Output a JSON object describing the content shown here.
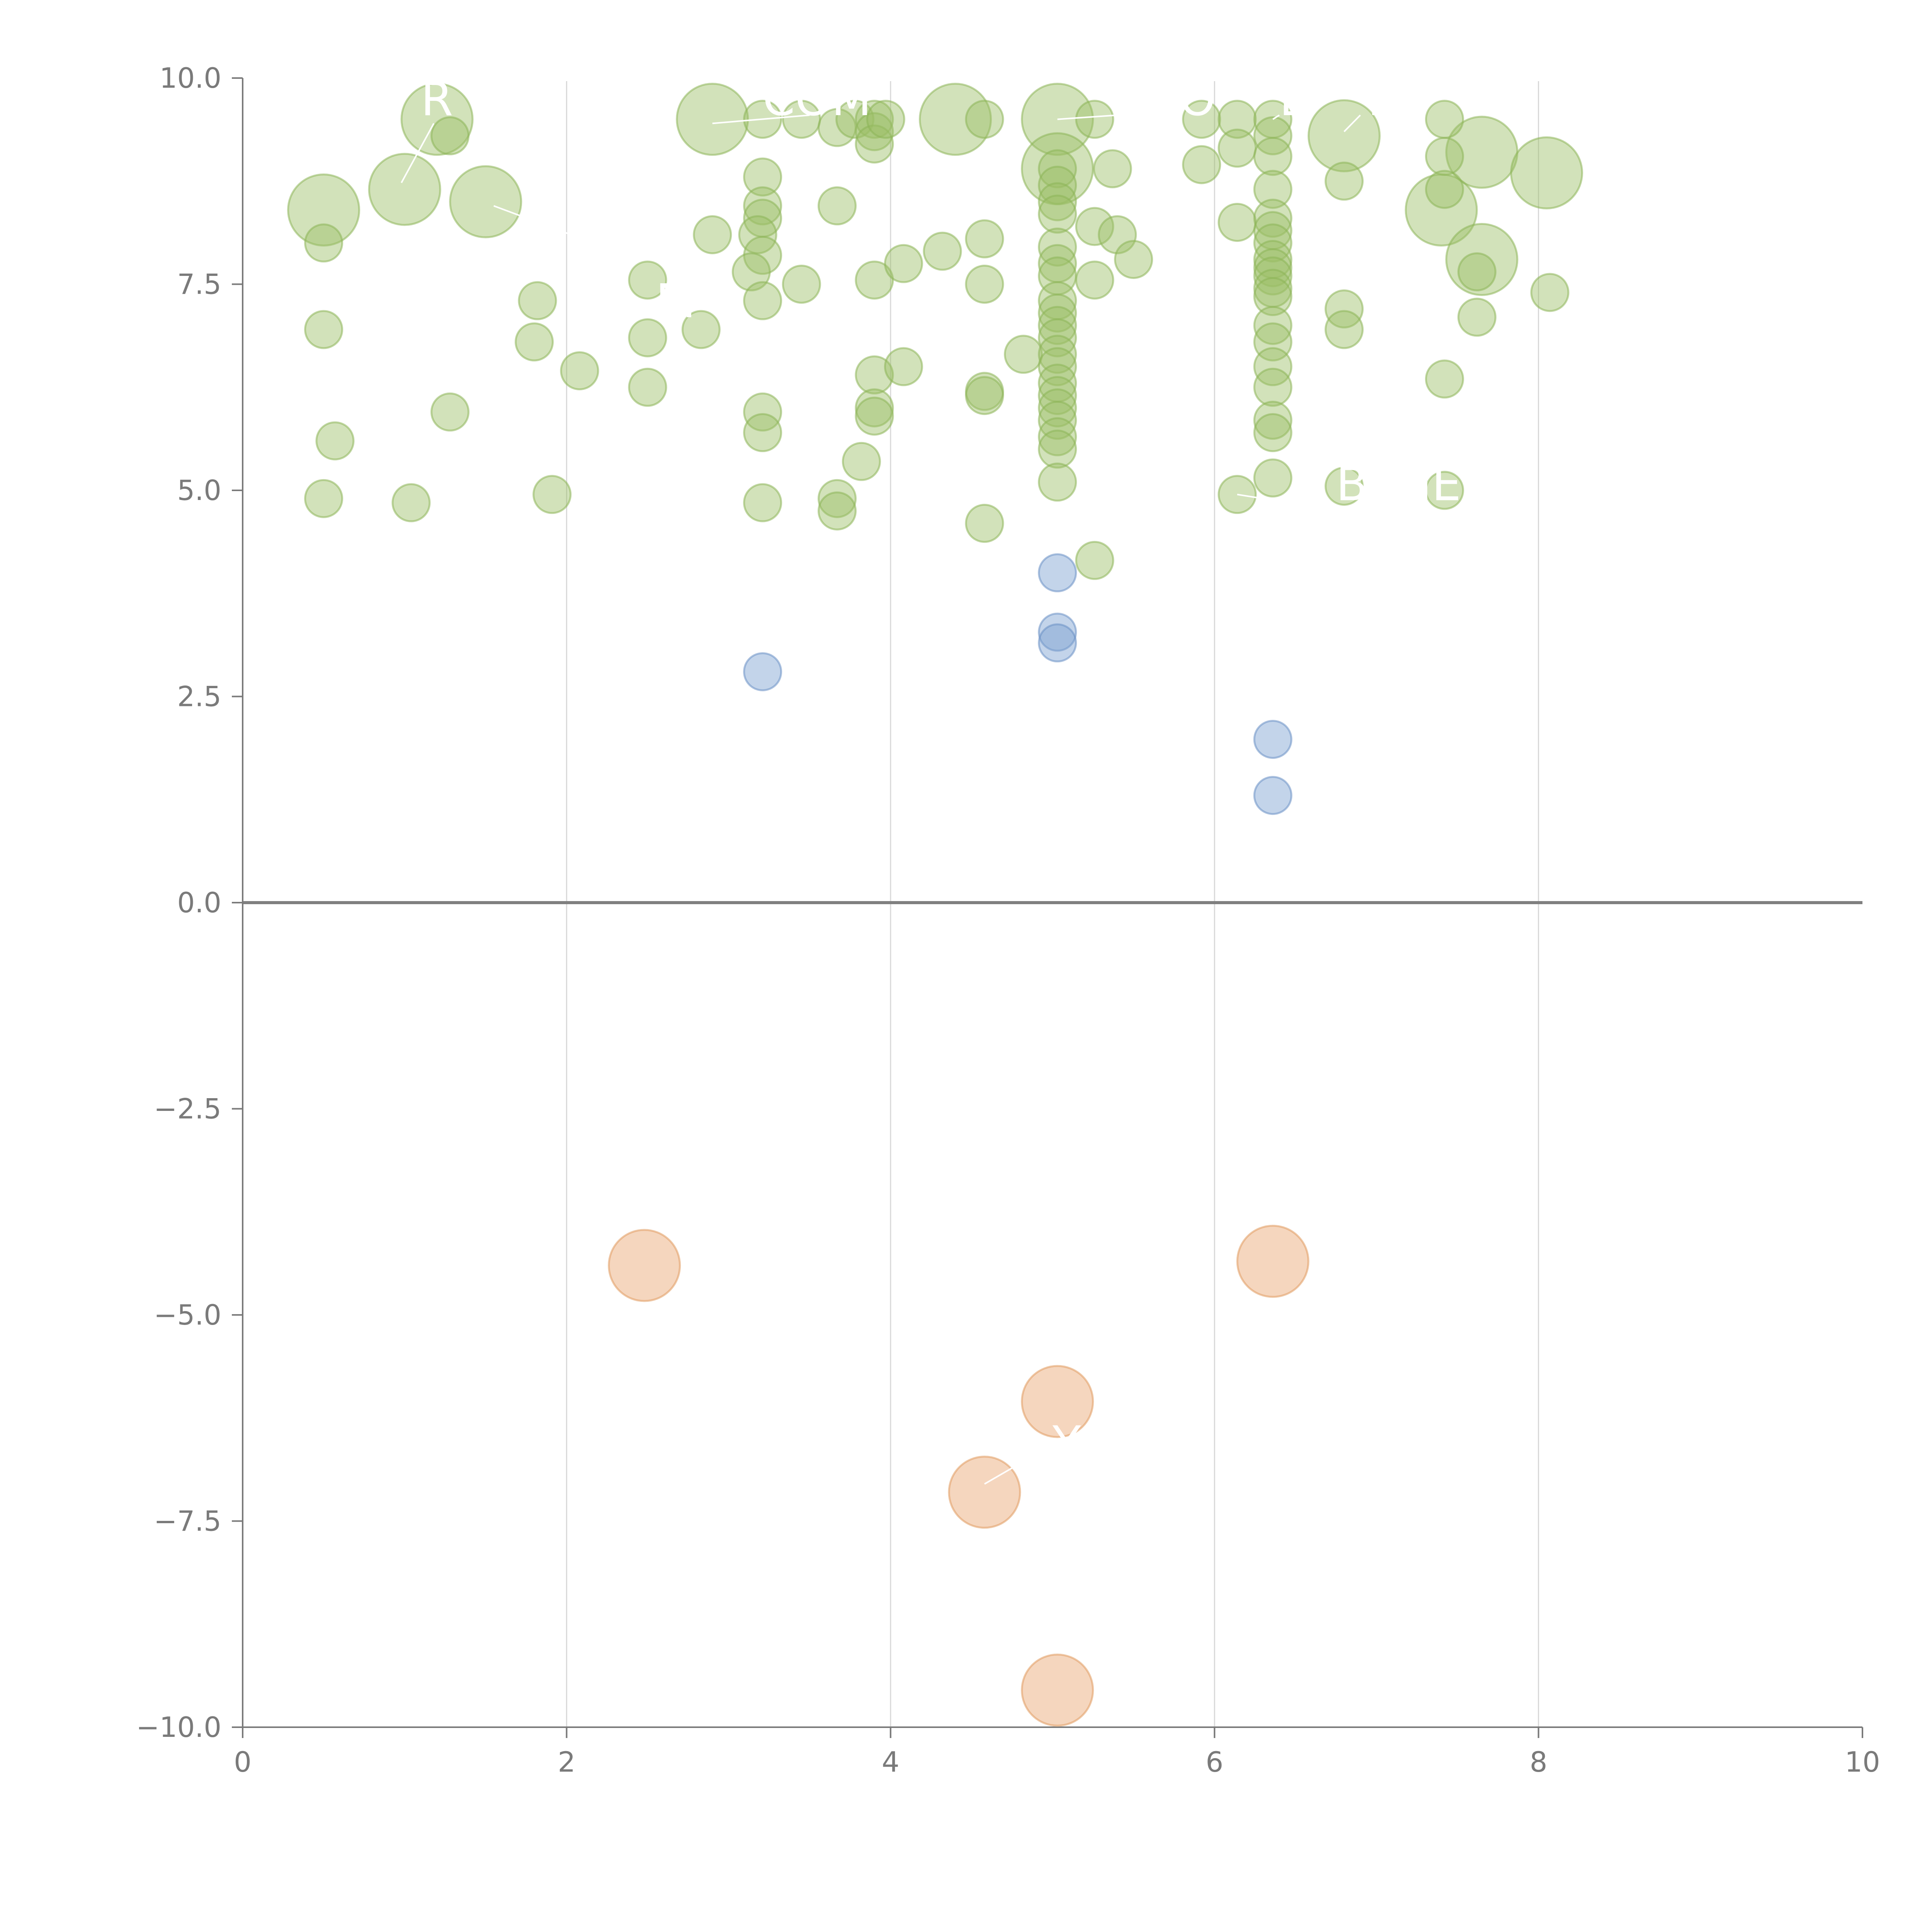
{
  "chart_data": {
    "type": "scatter",
    "title": "",
    "xlabel": "",
    "ylabel": "",
    "xlim": [
      0,
      10
    ],
    "ylim": [
      -10,
      10
    ],
    "x_ticks": [
      "0",
      "2",
      "4",
      "6",
      "8",
      "10"
    ],
    "x_tick_values": [
      0,
      2,
      4,
      6,
      8,
      10
    ],
    "y_ticks": [
      "10.0",
      "7.5",
      "5.0",
      "2.5",
      "0.0",
      "−2.5",
      "−5.0",
      "−7.5",
      "−10.0"
    ],
    "y_tick_values": [
      10,
      7.5,
      5,
      2.5,
      0,
      -2.5,
      -5,
      -7.5,
      -10
    ],
    "grid": "vertical",
    "reference_line_y": 0,
    "colors": {
      "green": "#9cbf66",
      "green_stroke": "#8db458",
      "blue": "#7a9fd1",
      "blue_stroke": "#6a8fc4",
      "orange": "#e8a56f",
      "orange_stroke": "#e09a5f",
      "axis": "#7a7a7a",
      "grid": "#d8d8d8",
      "zero_line": "#808080",
      "label": "#ffffff"
    },
    "series": [
      {
        "name": "green",
        "color": "green",
        "points": [
          [
            0.5,
            8.4,
            2
          ],
          [
            1.0,
            8.65,
            2
          ],
          [
            1.2,
            9.5,
            2
          ],
          [
            1.5,
            8.5,
            2
          ],
          [
            2.9,
            9.5,
            2
          ],
          [
            4.4,
            9.5,
            2
          ],
          [
            5.03,
            9.5,
            2
          ],
          [
            5.03,
            8.9,
            2
          ],
          [
            6.8,
            9.3,
            2
          ],
          [
            7.4,
            8.4,
            2
          ],
          [
            7.65,
            9.1,
            2
          ],
          [
            7.65,
            7.8,
            2
          ],
          [
            8.05,
            8.85,
            2
          ],
          [
            0.5,
            8.0,
            1
          ],
          [
            0.5,
            6.95,
            1
          ],
          [
            0.57,
            5.6,
            1
          ],
          [
            0.5,
            4.9,
            1
          ],
          [
            1.04,
            4.85,
            1
          ],
          [
            1.28,
            9.3,
            1
          ],
          [
            1.28,
            5.95,
            1
          ],
          [
            1.82,
            7.3,
            1
          ],
          [
            1.8,
            6.8,
            1
          ],
          [
            1.91,
            4.95,
            1
          ],
          [
            2.08,
            6.45,
            1
          ],
          [
            2.5,
            7.55,
            1
          ],
          [
            2.5,
            6.85,
            1
          ],
          [
            2.5,
            6.25,
            1
          ],
          [
            2.83,
            6.95,
            1
          ],
          [
            2.9,
            8.1,
            1
          ],
          [
            3.21,
            9.5,
            1
          ],
          [
            3.21,
            8.8,
            1
          ],
          [
            3.21,
            8.45,
            1
          ],
          [
            3.21,
            8.3,
            1
          ],
          [
            3.18,
            8.1,
            1
          ],
          [
            3.21,
            7.85,
            1
          ],
          [
            3.14,
            7.65,
            1
          ],
          [
            3.21,
            7.3,
            1
          ],
          [
            3.21,
            5.95,
            1
          ],
          [
            3.21,
            5.7,
            1
          ],
          [
            3.21,
            4.85,
            1
          ],
          [
            3.45,
            7.5,
            1
          ],
          [
            3.45,
            9.5,
            1
          ],
          [
            3.67,
            9.4,
            1
          ],
          [
            3.67,
            8.45,
            1
          ],
          [
            3.67,
            4.9,
            1
          ],
          [
            3.67,
            4.75,
            1
          ],
          [
            3.82,
            5.35,
            1
          ],
          [
            3.78,
            9.5,
            1
          ],
          [
            3.9,
            9.5,
            1
          ],
          [
            3.9,
            9.35,
            1
          ],
          [
            3.9,
            9.2,
            1
          ],
          [
            3.9,
            7.55,
            1
          ],
          [
            3.9,
            6.4,
            1
          ],
          [
            3.9,
            6.0,
            1
          ],
          [
            3.9,
            5.9,
            1
          ],
          [
            3.97,
            9.5,
            1
          ],
          [
            4.08,
            7.75,
            1
          ],
          [
            4.08,
            6.5,
            1
          ],
          [
            4.32,
            7.9,
            1
          ],
          [
            4.58,
            9.5,
            1
          ],
          [
            4.58,
            8.05,
            1
          ],
          [
            4.58,
            7.5,
            1
          ],
          [
            4.58,
            6.2,
            1
          ],
          [
            4.58,
            6.15,
            1
          ],
          [
            4.58,
            4.6,
            1
          ],
          [
            4.82,
            6.65,
            1
          ],
          [
            5.03,
            8.9,
            1
          ],
          [
            5.03,
            8.7,
            1
          ],
          [
            5.03,
            8.5,
            1
          ],
          [
            5.03,
            8.35,
            1
          ],
          [
            5.03,
            7.95,
            1
          ],
          [
            5.03,
            7.75,
            1
          ],
          [
            5.03,
            7.6,
            1
          ],
          [
            5.03,
            7.3,
            1
          ],
          [
            5.03,
            7.15,
            1
          ],
          [
            5.03,
            7.0,
            1
          ],
          [
            5.03,
            6.85,
            1
          ],
          [
            5.03,
            6.65,
            1
          ],
          [
            5.03,
            6.5,
            1
          ],
          [
            5.03,
            6.3,
            1
          ],
          [
            5.03,
            6.15,
            1
          ],
          [
            5.03,
            6.0,
            1
          ],
          [
            5.03,
            5.85,
            1
          ],
          [
            5.03,
            5.65,
            1
          ],
          [
            5.03,
            5.5,
            1
          ],
          [
            5.03,
            5.1,
            1
          ],
          [
            5.26,
            9.5,
            1
          ],
          [
            5.26,
            8.2,
            1
          ],
          [
            5.26,
            7.55,
            1
          ],
          [
            5.26,
            4.15,
            1
          ],
          [
            5.37,
            8.9,
            1
          ],
          [
            5.4,
            8.1,
            1
          ],
          [
            5.5,
            7.8,
            1
          ],
          [
            5.92,
            9.5,
            1
          ],
          [
            5.92,
            8.95,
            1
          ],
          [
            6.14,
            9.5,
            1
          ],
          [
            6.14,
            9.15,
            1
          ],
          [
            6.14,
            8.25,
            1
          ],
          [
            6.14,
            4.95,
            1
          ],
          [
            6.36,
            9.5,
            1
          ],
          [
            6.36,
            9.3,
            1
          ],
          [
            6.36,
            9.05,
            1
          ],
          [
            6.36,
            8.65,
            1
          ],
          [
            6.36,
            8.3,
            1
          ],
          [
            6.36,
            8.15,
            1
          ],
          [
            6.36,
            8.0,
            1
          ],
          [
            6.36,
            7.8,
            1
          ],
          [
            6.36,
            7.7,
            1
          ],
          [
            6.36,
            7.6,
            1
          ],
          [
            6.36,
            7.45,
            1
          ],
          [
            6.36,
            7.35,
            1
          ],
          [
            6.36,
            7.0,
            1
          ],
          [
            6.36,
            6.8,
            1
          ],
          [
            6.36,
            6.5,
            1
          ],
          [
            6.36,
            6.25,
            1
          ],
          [
            6.36,
            5.85,
            1
          ],
          [
            6.36,
            5.7,
            1
          ],
          [
            6.36,
            5.15,
            1
          ],
          [
            6.8,
            8.75,
            1
          ],
          [
            6.8,
            7.2,
            1
          ],
          [
            6.8,
            6.95,
            1
          ],
          [
            6.8,
            5.05,
            1
          ],
          [
            7.42,
            9.5,
            1
          ],
          [
            7.42,
            9.05,
            1
          ],
          [
            7.42,
            8.65,
            1
          ],
          [
            7.42,
            6.35,
            1
          ],
          [
            7.42,
            5.0,
            1
          ],
          [
            7.62,
            7.65,
            1
          ],
          [
            7.62,
            7.1,
            1
          ],
          [
            8.07,
            7.4,
            1
          ]
        ]
      },
      {
        "name": "blue",
        "color": "blue",
        "points": [
          [
            3.21,
            2.8,
            1
          ],
          [
            5.03,
            4.0,
            1
          ],
          [
            5.03,
            3.28,
            1
          ],
          [
            5.03,
            3.15,
            1
          ],
          [
            6.36,
            1.98,
            1
          ],
          [
            6.36,
            1.3,
            1
          ]
        ]
      },
      {
        "name": "orange",
        "color": "orange",
        "points": [
          [
            2.48,
            -4.4,
            2
          ],
          [
            6.36,
            -4.35,
            2
          ],
          [
            5.03,
            -6.05,
            2
          ],
          [
            4.58,
            -7.15,
            2
          ],
          [
            5.03,
            -9.55,
            2
          ]
        ]
      }
    ],
    "point_labels": [
      {
        "text": "R",
        "x": 1.1,
        "y": 9.55,
        "lx": 0.98,
        "ly": 8.73,
        "lx2": 1.18,
        "ly2": 9.45
      },
      {
        "text": "COM",
        "x": 3.21,
        "y": 9.55,
        "lx": 2.9,
        "ly": 9.45,
        "lx2": 3.5,
        "ly2": 9.55
      },
      {
        "text": "SO",
        "x": 5.6,
        "y": 9.55,
        "lx": 5.03,
        "ly": 9.5,
        "lx2": 5.4,
        "ly2": 9.55
      },
      {
        "text": "L",
        "x": 6.4,
        "y": 9.55,
        "lx": 6.36,
        "ly": 9.5,
        "lx2": 6.4,
        "ly2": 9.55
      },
      {
        "text": "T",
        "x": 6.9,
        "y": 9.55,
        "lx": 6.8,
        "ly": 9.35,
        "lx2": 6.9,
        "ly2": 9.55
      },
      {
        "text": "M",
        "x": 2.55,
        "y": 7.1,
        "lx": 1.55,
        "ly": 8.45,
        "lx2": 2.3,
        "ly2": 7.9
      },
      {
        "text": "BENEFIT",
        "x": 6.75,
        "y": 4.88,
        "lx": 6.14,
        "ly": 4.95,
        "lx2": 6.3,
        "ly2": 4.9
      },
      {
        "text": "Y",
        "x": 5.0,
        "y": -6.75,
        "lx": 4.58,
        "ly": -7.05,
        "lx2": 4.8,
        "ly2": -6.8
      }
    ]
  }
}
